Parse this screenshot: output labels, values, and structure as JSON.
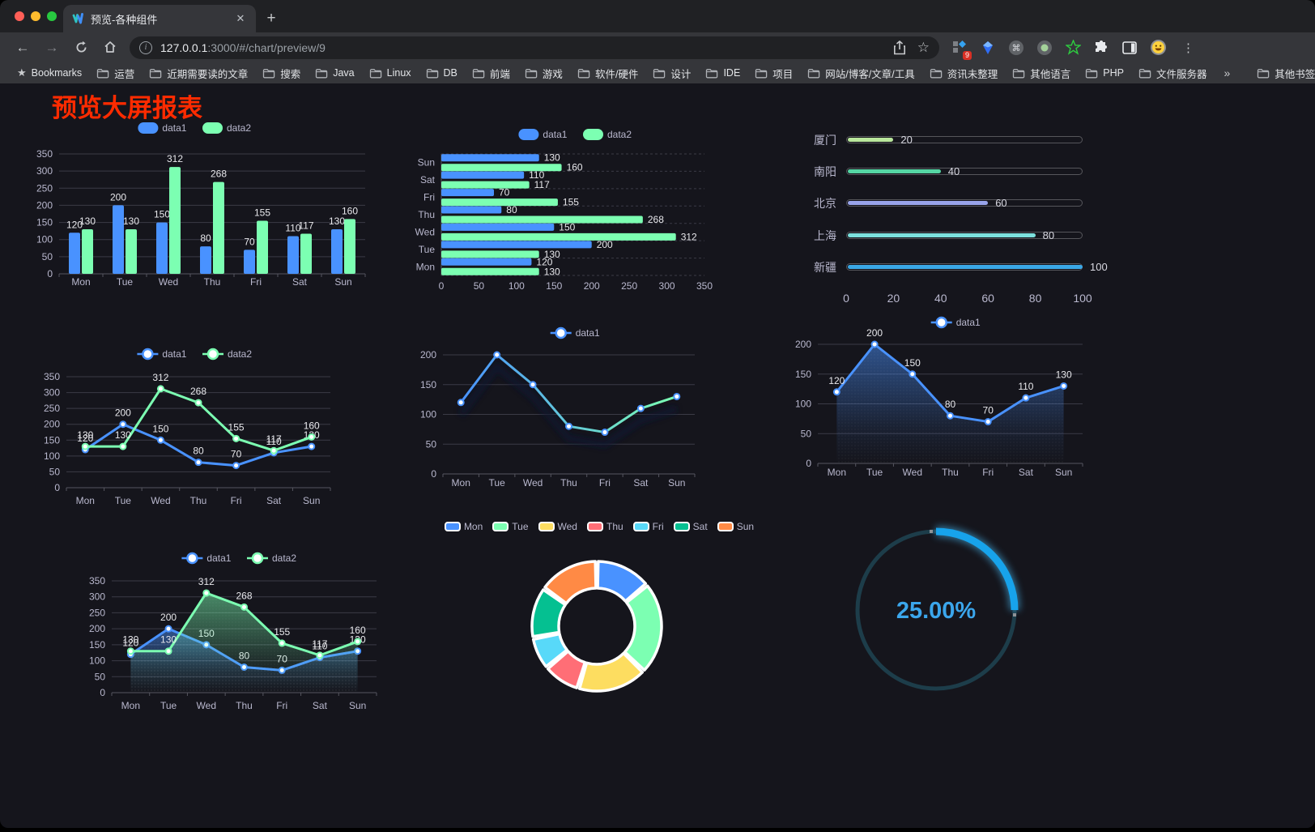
{
  "browser": {
    "tab_title": "预览-各种组件",
    "url_host": "127.0.0.1",
    "url_rest": ":3000/#/chart/preview/9",
    "bookmarks_root_label": "Bookmarks",
    "bookmarks": [
      "运营",
      "近期需要读的文章",
      "搜索",
      "Java",
      "Linux",
      "DB",
      "前端",
      "游戏",
      "软件/硬件",
      "设计",
      "IDE",
      "项目",
      "网站/博客/文章/工具",
      "资讯未整理",
      "其他语言",
      "PHP",
      "文件服务器"
    ],
    "bookmarks_overflow": "»",
    "other_bookmarks_label": "其他书签",
    "extension_badge": "9",
    "new_tab_label": "+"
  },
  "page": {
    "title": "预览大屏报表",
    "title_color": "#fe2b00",
    "background": "#15151c"
  },
  "theme": {
    "axis_text": "#b9b8ce",
    "grid_line": "#3b3b46",
    "axis_line": "#55555f",
    "data_label": "#e8e8ec"
  },
  "chart_data": [
    {
      "id": "bar-vertical",
      "type": "bar",
      "categories": [
        "Mon",
        "Tue",
        "Wed",
        "Thu",
        "Fri",
        "Sat",
        "Sun"
      ],
      "series": [
        {
          "name": "data1",
          "color": "#4992ff",
          "values": [
            120,
            200,
            150,
            80,
            70,
            110,
            130
          ]
        },
        {
          "name": "data2",
          "color": "#7cffb2",
          "values": [
            130,
            130,
            312,
            268,
            155,
            117,
            160
          ]
        }
      ],
      "ylim": [
        0,
        350
      ],
      "ytick": 50,
      "legend_position": "top",
      "data_labels": true
    },
    {
      "id": "bar-horizontal",
      "type": "bar-h",
      "categories_top_to_bottom": [
        "Sun",
        "Sat",
        "Fri",
        "Thu",
        "Wed",
        "Tue",
        "Mon"
      ],
      "series": [
        {
          "name": "data1",
          "color": "#4992ff",
          "values_top_to_bottom": [
            130,
            110,
            70,
            80,
            150,
            200,
            120
          ]
        },
        {
          "name": "data2",
          "color": "#7cffb2",
          "values_top_to_bottom": [
            160,
            117,
            155,
            268,
            312,
            130,
            130
          ]
        }
      ],
      "xlim": [
        0,
        350
      ],
      "xtick": 50,
      "legend_position": "top",
      "data_labels": true
    },
    {
      "id": "progress-bars",
      "type": "bar-progress",
      "items": [
        {
          "label": "厦门",
          "value": 20,
          "color": "#b9e79c"
        },
        {
          "label": "南阳",
          "value": 40,
          "color": "#55d6a4"
        },
        {
          "label": "北京",
          "value": 60,
          "color": "#98a3ea"
        },
        {
          "label": "上海",
          "value": 80,
          "color": "#7ce0dd"
        },
        {
          "label": "新疆",
          "value": 100,
          "color": "#3aa7e6"
        }
      ],
      "axis_ticks": [
        0,
        20,
        40,
        60,
        80,
        100
      ],
      "xlim": [
        0,
        100
      ]
    },
    {
      "id": "line-basic",
      "type": "line",
      "categories": [
        "Mon",
        "Tue",
        "Wed",
        "Thu",
        "Fri",
        "Sat",
        "Sun"
      ],
      "series": [
        {
          "name": "data1",
          "color": "#4992ff",
          "values": [
            120,
            200,
            150,
            80,
            70,
            110,
            130
          ]
        },
        {
          "name": "data2",
          "color": "#7cffb2",
          "values": [
            130,
            130,
            312,
            268,
            155,
            117,
            160
          ]
        }
      ],
      "ylim": [
        0,
        350
      ],
      "ytick": 50,
      "point_labels": true
    },
    {
      "id": "line-gradient",
      "type": "line",
      "categories": [
        "Mon",
        "Tue",
        "Wed",
        "Thu",
        "Fri",
        "Sat",
        "Sun"
      ],
      "series": [
        {
          "name": "data1",
          "color": "#4992ff",
          "gradient": [
            "#4992ff",
            "#7cffb2"
          ],
          "shadow": true,
          "values": [
            120,
            200,
            150,
            80,
            70,
            110,
            130
          ]
        }
      ],
      "ylim": [
        0,
        200
      ],
      "ytick": 50,
      "point_labels": false
    },
    {
      "id": "area-single",
      "type": "area",
      "categories": [
        "Mon",
        "Tue",
        "Wed",
        "Thu",
        "Fri",
        "Sat",
        "Sun"
      ],
      "series": [
        {
          "name": "data1",
          "color": "#4992ff",
          "values": [
            120,
            200,
            150,
            80,
            70,
            110,
            130
          ]
        }
      ],
      "ylim": [
        0,
        200
      ],
      "ytick": 50,
      "point_labels": true
    },
    {
      "id": "area-double",
      "type": "area",
      "categories": [
        "Mon",
        "Tue",
        "Wed",
        "Thu",
        "Fri",
        "Sat",
        "Sun"
      ],
      "series": [
        {
          "name": "data1",
          "color": "#4992ff",
          "values": [
            120,
            200,
            150,
            80,
            70,
            110,
            130
          ]
        },
        {
          "name": "data2",
          "color": "#7cffb2",
          "values": [
            130,
            130,
            312,
            268,
            155,
            117,
            160
          ]
        }
      ],
      "ylim": [
        0,
        350
      ],
      "ytick": 50,
      "point_labels": true
    },
    {
      "id": "donut",
      "type": "pie",
      "labels": [
        "Mon",
        "Tue",
        "Wed",
        "Thu",
        "Fri",
        "Sat",
        "Sun"
      ],
      "values": [
        120,
        200,
        150,
        80,
        70,
        110,
        130
      ],
      "colors": [
        "#4992ff",
        "#7cffb2",
        "#fddd60",
        "#ff6e76",
        "#58d9f9",
        "#05c091",
        "#ff8a45"
      ]
    },
    {
      "id": "gauge",
      "type": "gauge",
      "value": 25,
      "max": 100,
      "label": "25.00%",
      "color": "#17a3eb",
      "track_color": "#1d3d4a"
    }
  ]
}
